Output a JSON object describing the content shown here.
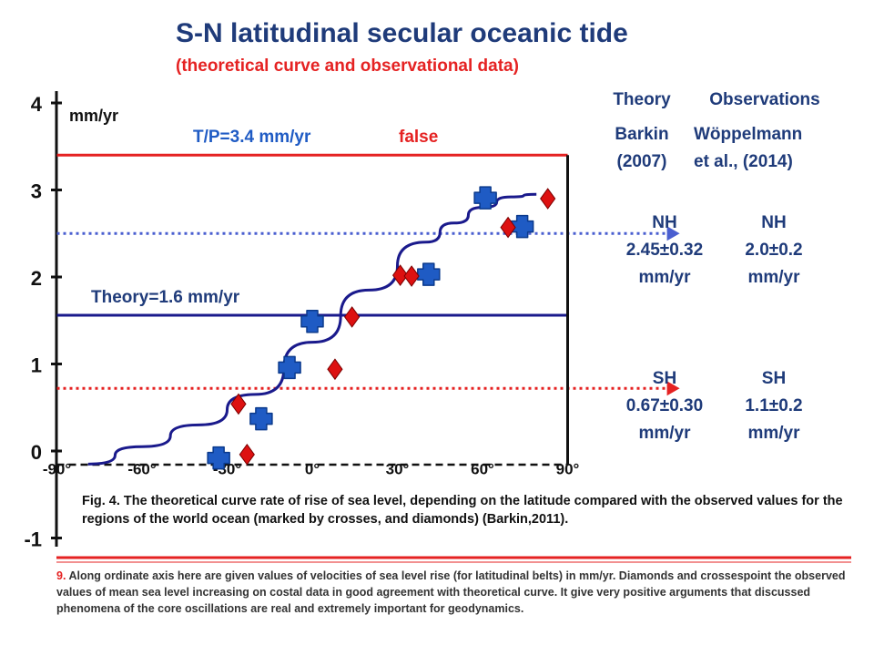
{
  "title": "S-N latitudinal secular oceanic tide",
  "subtitle": "(theoretical curve and observational data)",
  "table": {
    "theory_header": "Theory",
    "observations_header": "Observations",
    "theory_source_1": "Barkin",
    "theory_source_2": "(2007)",
    "obs_source_1": "Wöppelmann",
    "obs_source_2": "et al., (2014)",
    "nh_theory": [
      "NH",
      "2.45±0.32",
      "mm/yr"
    ],
    "nh_obs": [
      "NH",
      "2.0±0.2",
      "mm/yr"
    ],
    "sh_theory": [
      "SH",
      "0.67±0.30",
      "mm/yr"
    ],
    "sh_obs": [
      "SH",
      "1.1±0.2",
      "mm/yr"
    ]
  },
  "caption": "Fig. 4. The theoretical curve rate of rise of sea level, depending on the latitude compared with the observed values for the regions of the world ocean (marked by crosses, and diamonds) (Barkin,2011).",
  "note": {
    "number": "9.",
    "text": " Along ordinate axis here are given values of velocities of sea level rise (for latitudinal belts) in mm/yr. Diamonds and crossespoint the observed values of mean sea level increasing on costal data in good agreement with theoretical curve. It give very positive arguments that discussed phenomena of the core oscillations are real and extremely important for geodynamics."
  },
  "colors": {
    "blue": "#1f3b7a",
    "red": "#e52222",
    "dark_blue": "#1a1a8c",
    "dotted_blue": "#4a5fd0",
    "cross_blue": "#1f5bc4",
    "diamond_red": "#dd1111"
  },
  "chart_data": {
    "type": "scatter",
    "ylabel": "mm/yr",
    "y_ticks": [
      "-1",
      "0",
      "1",
      "2",
      "3",
      "4"
    ],
    "ylim": [
      -1,
      4
    ],
    "x_ticks": [
      "-90°",
      "-60°",
      "-30°",
      "0°",
      "30°",
      "60°",
      "90°"
    ],
    "xlim": [
      -90,
      90
    ],
    "annotations": {
      "tp": "T/P=3.4 mm/yr",
      "false": "false",
      "theory": "Theory=1.6 mm/yr"
    },
    "hlines": [
      {
        "value": 3.4,
        "style": "solid",
        "color": "red",
        "from": -90,
        "to": 90
      },
      {
        "value": 1.56,
        "style": "solid",
        "color": "blue",
        "from": -90,
        "to": 90
      },
      {
        "value": 2.5,
        "style": "dotted",
        "color": "blue",
        "from": -90,
        "to": 125
      },
      {
        "value": 0.72,
        "style": "dotted",
        "color": "red",
        "from": -90,
        "to": 125
      }
    ],
    "theory_curve": [
      [
        -79,
        -0.15
      ],
      [
        -60,
        0.05
      ],
      [
        -40,
        0.3
      ],
      [
        -20,
        0.65
      ],
      [
        0,
        1.25
      ],
      [
        20,
        1.85
      ],
      [
        40,
        2.4
      ],
      [
        50,
        2.62
      ],
      [
        60,
        2.8
      ],
      [
        70,
        2.92
      ],
      [
        79,
        2.95
      ]
    ],
    "series": [
      {
        "name": "crosses",
        "marker": "cross",
        "points": [
          [
            -33,
            -0.08
          ],
          [
            -18,
            0.37
          ],
          [
            -8,
            0.96
          ],
          [
            0,
            1.49
          ],
          [
            41,
            2.03
          ],
          [
            61,
            2.91
          ],
          [
            74,
            2.58
          ]
        ]
      },
      {
        "name": "diamonds",
        "marker": "diamond",
        "points": [
          [
            -26,
            0.54
          ],
          [
            -23,
            -0.04
          ],
          [
            8,
            0.94
          ],
          [
            14,
            1.54
          ],
          [
            31,
            2.02
          ],
          [
            35,
            2.01
          ],
          [
            69,
            2.57
          ],
          [
            83,
            2.9
          ]
        ]
      }
    ]
  }
}
